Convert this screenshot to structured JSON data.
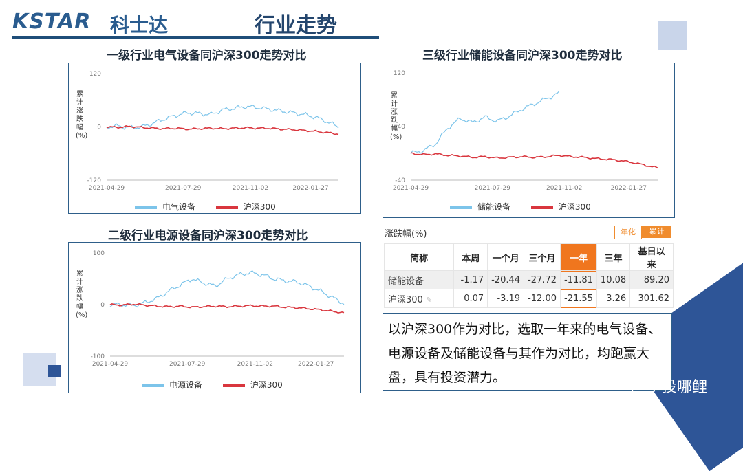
{
  "header": {
    "logo_text": "KSTAR",
    "logo_cn": "科士达",
    "title": "行业走势"
  },
  "colors": {
    "primary": "#1f4e79",
    "series_blue": "#7cc4ea",
    "series_red": "#d9363e",
    "highlight": "#f0761e"
  },
  "charts": [
    {
      "title": "一级行业电气设备同沪深300走势对比",
      "ylabel": "累计涨跌幅(%)",
      "yticks": [
        "120",
        "0",
        "-120"
      ],
      "xticks": [
        "2021-04-29",
        "2021-07-29",
        "2021-11-02",
        "2022-01-27"
      ],
      "legend": [
        "电气设备",
        "沪深300"
      ]
    },
    {
      "title": "二级行业电源设备同沪深300走势对比",
      "ylabel": "累计涨跌幅(%)",
      "yticks": [
        "100",
        "0",
        "-100"
      ],
      "xticks": [
        "2021-04-29",
        "2021-07-29",
        "2021-11-02",
        "2022-01-27"
      ],
      "legend": [
        "电源设备",
        "沪深300"
      ]
    },
    {
      "title": "三级行业储能设备同沪深300走势对比",
      "ylabel": "累计涨跌幅(%)",
      "yticks": [
        "120",
        "40",
        "-40"
      ],
      "xticks": [
        "2021-04-29",
        "2021-07-29",
        "2021-11-02",
        "2022-01-27"
      ],
      "legend": [
        "储能设备",
        "沪深300"
      ]
    }
  ],
  "chart_data": [
    {
      "type": "line",
      "title": "一级行业电气设备同沪深300走势对比",
      "ylabel": "累计涨跌幅(%)",
      "ylim": [
        -120,
        120
      ],
      "x": [
        0,
        0.05,
        0.1,
        0.15,
        0.2,
        0.25,
        0.3,
        0.35,
        0.4,
        0.45,
        0.5,
        0.55,
        0.6,
        0.65,
        0.7,
        0.75,
        0.8,
        0.85,
        0.9,
        0.95,
        1.0
      ],
      "series": [
        {
          "name": "电气设备",
          "values": [
            0,
            2,
            -2,
            0,
            8,
            18,
            26,
            32,
            30,
            28,
            38,
            42,
            46,
            44,
            40,
            36,
            32,
            28,
            22,
            12,
            0
          ]
        },
        {
          "name": "沪深300",
          "values": [
            0,
            -1,
            1,
            -1,
            -3,
            -4,
            -3,
            -5,
            -4,
            -3,
            -4,
            -3,
            -2,
            -3,
            -3,
            -5,
            -6,
            -8,
            -10,
            -13,
            -16
          ]
        }
      ]
    },
    {
      "type": "line",
      "title": "二级行业电源设备同沪深300走势对比",
      "ylabel": "累计涨跌幅(%)",
      "ylim": [
        -100,
        100
      ],
      "x": [
        0,
        0.05,
        0.1,
        0.15,
        0.2,
        0.25,
        0.3,
        0.35,
        0.4,
        0.45,
        0.5,
        0.55,
        0.6,
        0.65,
        0.7,
        0.75,
        0.8,
        0.85,
        0.9,
        0.95,
        1.0
      ],
      "series": [
        {
          "name": "电源设备",
          "values": [
            0,
            0,
            -2,
            4,
            12,
            26,
            38,
            50,
            42,
            36,
            50,
            58,
            62,
            58,
            50,
            46,
            44,
            36,
            26,
            14,
            2
          ]
        },
        {
          "name": "沪深300",
          "values": [
            0,
            -1,
            1,
            -1,
            -3,
            -4,
            -3,
            -5,
            -4,
            -3,
            -4,
            -3,
            -2,
            -3,
            -3,
            -5,
            -6,
            -8,
            -10,
            -13,
            -16
          ]
        }
      ]
    },
    {
      "type": "line",
      "title": "三级行业储能设备同沪深300走势对比",
      "ylabel": "累计涨跌幅(%)",
      "ylim": [
        -40,
        120
      ],
      "x": [
        0,
        0.05,
        0.1,
        0.15,
        0.2,
        0.25,
        0.3,
        0.35,
        0.4,
        0.45,
        0.5,
        0.55,
        0.6,
        0.65,
        0.7,
        0.75,
        0.8,
        0.85,
        0.9,
        0.95,
        1.0
      ],
      "series": [
        {
          "name": "储能设备",
          "values": [
            0,
            4,
            14,
            38,
            52,
            46,
            54,
            48,
            56,
            66,
            74,
            82,
            90,
            null,
            null,
            null,
            null,
            null,
            null,
            null,
            null
          ]
        },
        {
          "name": "沪深300",
          "values": [
            0,
            -2,
            -1,
            -3,
            -4,
            -6,
            -5,
            -7,
            -6,
            -5,
            -6,
            -5,
            -3,
            -5,
            -6,
            -8,
            -9,
            -11,
            -14,
            -18,
            -22
          ]
        }
      ]
    }
  ],
  "table": {
    "caption": "涨跌幅(%)",
    "toggles": [
      "年化",
      "累计"
    ],
    "headers": [
      "简称",
      "本周",
      "一个月",
      "三个月",
      "一年",
      "三年",
      "基日以来"
    ],
    "rows": [
      [
        "储能设备",
        "-1.17",
        "-20.44",
        "-27.72",
        "-11.81",
        "10.08",
        "89.20"
      ],
      [
        "沪深300",
        "0.07",
        "-3.19",
        "-12.00",
        "-21.55",
        "3.26",
        "301.62"
      ]
    ]
  },
  "note": "以沪深300作为对比，选取一年来的电气设备、电源设备及储能设备与其作为对比，均跑赢大盘，具有投资潜力。",
  "watermark": "投哪鲤"
}
